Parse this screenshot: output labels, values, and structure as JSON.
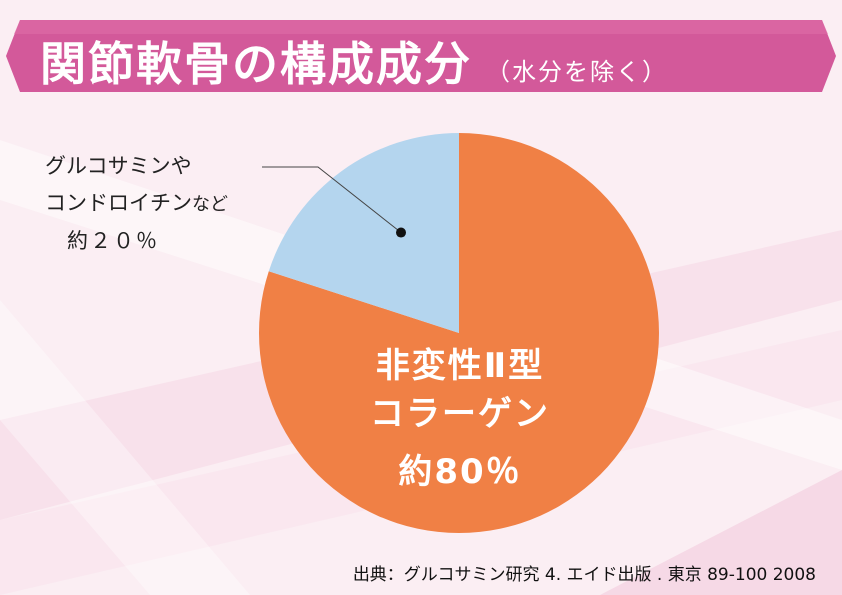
{
  "banner": {
    "title": "関節軟骨の構成成分",
    "subtitle": "（水分を除く）"
  },
  "callout": {
    "line1": "グルコサミンや",
    "line2a": "コンドロイチン",
    "line2b": "など",
    "line3": "約２０％"
  },
  "big_label": {
    "line1": "非変性Ⅱ型",
    "line2": "コラーゲン",
    "line3": "約80％"
  },
  "source": "出典：グルコサミン研究 4. エイド出版 . 東京 89-100  2008",
  "colors": {
    "banner": "#d3599a",
    "collagen": "#f08045",
    "other": "#b4d5ee"
  },
  "chart_data": {
    "type": "pie",
    "title": "",
    "slices": [
      {
        "label": "非変性Ⅱ型 コラーゲン",
        "value": 80,
        "color": "#f08045"
      },
      {
        "label": "グルコサミンやコンドロイチンなど",
        "value": 20,
        "color": "#b4d5ee"
      }
    ]
  }
}
